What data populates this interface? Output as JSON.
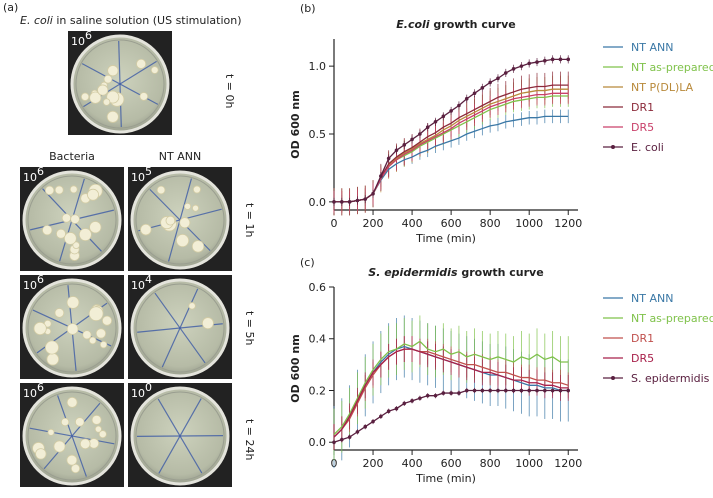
{
  "photos": {
    "panel_label": "(a)",
    "title_italic": "E. coli",
    "title_rest": " in saline solution (US stimulation)",
    "top_plate": {
      "base": "10",
      "exponent": "6",
      "time": "t = 0h"
    },
    "column_headers": [
      "Bacteria",
      "NT ANN"
    ],
    "rows": [
      {
        "time": "t = 1h",
        "plates": [
          {
            "base": "10",
            "exponent": "6"
          },
          {
            "base": "10",
            "exponent": "5"
          }
        ]
      },
      {
        "time": "t = 5h",
        "plates": [
          {
            "base": "10",
            "exponent": "6"
          },
          {
            "base": "10",
            "exponent": "4"
          }
        ]
      },
      {
        "time": "t = 24h",
        "plates": [
          {
            "base": "10",
            "exponent": "6"
          },
          {
            "base": "10",
            "exponent": "0"
          }
        ]
      }
    ]
  },
  "chart_data": [
    {
      "type": "line",
      "panel_label": "(b)",
      "title_italic": "E.coli",
      "title_rest": " growth curve",
      "x_label": "Time (min)",
      "y_label": "OD 600 nm",
      "xlim": [
        0,
        1250
      ],
      "xticks": [
        0,
        200,
        400,
        600,
        800,
        1000,
        1200
      ],
      "ylim": [
        -0.06,
        1.2
      ],
      "yticks": [
        {
          "value": 0,
          "label": "0.0"
        },
        {
          "value": 0.5,
          "label": "0.5"
        },
        {
          "value": 1,
          "label": "1.0"
        }
      ],
      "x": [
        0,
        40,
        80,
        120,
        160,
        200,
        240,
        280,
        320,
        360,
        400,
        440,
        480,
        520,
        560,
        600,
        640,
        680,
        720,
        760,
        800,
        840,
        880,
        920,
        960,
        1000,
        1040,
        1080,
        1120,
        1160,
        1200
      ],
      "series": [
        {
          "name": "NT ANN",
          "color": "#3b78a6",
          "error": 0.05,
          "values": [
            0,
            0,
            0,
            0.01,
            0.02,
            0.06,
            0.16,
            0.24,
            0.28,
            0.31,
            0.33,
            0.36,
            0.38,
            0.41,
            0.43,
            0.45,
            0.47,
            0.5,
            0.52,
            0.54,
            0.56,
            0.57,
            0.59,
            0.6,
            0.61,
            0.62,
            0.62,
            0.63,
            0.63,
            0.63,
            0.63
          ]
        },
        {
          "name": "NT as-prepared",
          "color": "#7fc24a",
          "error": 0.08,
          "values": [
            0,
            0,
            0,
            0.01,
            0.02,
            0.06,
            0.17,
            0.26,
            0.31,
            0.34,
            0.37,
            0.41,
            0.44,
            0.47,
            0.5,
            0.53,
            0.56,
            0.59,
            0.62,
            0.65,
            0.68,
            0.7,
            0.72,
            0.74,
            0.75,
            0.76,
            0.77,
            0.77,
            0.78,
            0.78,
            0.78
          ]
        },
        {
          "name": "NT P(DL)LA",
          "color": "#b8893a",
          "error": 0.1,
          "values": [
            0,
            0,
            0,
            0.01,
            0.02,
            0.06,
            0.17,
            0.27,
            0.32,
            0.36,
            0.39,
            0.43,
            0.46,
            0.49,
            0.53,
            0.56,
            0.6,
            0.63,
            0.66,
            0.69,
            0.72,
            0.74,
            0.76,
            0.78,
            0.8,
            0.81,
            0.82,
            0.82,
            0.83,
            0.83,
            0.83
          ]
        },
        {
          "name": "DR1",
          "color": "#8b2a3a",
          "error": 0.1,
          "values": [
            0,
            0,
            0,
            0.01,
            0.02,
            0.06,
            0.18,
            0.28,
            0.33,
            0.37,
            0.4,
            0.44,
            0.48,
            0.51,
            0.55,
            0.58,
            0.62,
            0.65,
            0.68,
            0.71,
            0.74,
            0.77,
            0.79,
            0.81,
            0.83,
            0.84,
            0.85,
            0.85,
            0.86,
            0.86,
            0.86
          ]
        },
        {
          "name": "DR5",
          "color": "#c9406a",
          "error": 0.08,
          "values": [
            0,
            0,
            0,
            0.01,
            0.02,
            0.06,
            0.17,
            0.26,
            0.31,
            0.35,
            0.38,
            0.42,
            0.45,
            0.48,
            0.51,
            0.54,
            0.58,
            0.61,
            0.64,
            0.67,
            0.7,
            0.72,
            0.74,
            0.76,
            0.77,
            0.78,
            0.79,
            0.79,
            0.8,
            0.8,
            0.8
          ]
        },
        {
          "name": "E. coli",
          "color": "#5a2040",
          "error": 0.03,
          "markers": true,
          "values": [
            0,
            0,
            0,
            0.01,
            0.02,
            0.06,
            0.19,
            0.32,
            0.38,
            0.42,
            0.46,
            0.5,
            0.55,
            0.59,
            0.63,
            0.67,
            0.71,
            0.76,
            0.8,
            0.84,
            0.88,
            0.91,
            0.95,
            0.98,
            1,
            1.02,
            1.03,
            1.04,
            1.05,
            1.05,
            1.05
          ]
        }
      ]
    },
    {
      "type": "line",
      "panel_label": "(c)",
      "title_italic": "S. epidermidis",
      "title_rest": " growth curve",
      "x_label": "Time (min)",
      "y_label": "OD 600 nm",
      "xlim": [
        0,
        1250
      ],
      "xticks": [
        0,
        200,
        400,
        600,
        800,
        1000,
        1200
      ],
      "ylim": [
        -0.03,
        0.6
      ],
      "yticks": [
        {
          "value": 0,
          "label": "0.0"
        },
        {
          "value": 0.2,
          "label": "0.2"
        },
        {
          "value": 0.4,
          "label": "0.4"
        },
        {
          "value": 0.6,
          "label": "0.6"
        }
      ],
      "x": [
        0,
        40,
        80,
        120,
        160,
        200,
        240,
        280,
        320,
        360,
        400,
        440,
        480,
        520,
        560,
        600,
        640,
        680,
        720,
        760,
        800,
        840,
        880,
        920,
        960,
        1000,
        1040,
        1080,
        1120,
        1160,
        1200
      ],
      "series": [
        {
          "name": "NT ANN",
          "color": "#3b78a6",
          "error": 0.12,
          "values": [
            0.02,
            0.05,
            0.1,
            0.16,
            0.22,
            0.27,
            0.31,
            0.34,
            0.36,
            0.37,
            0.36,
            0.35,
            0.34,
            0.33,
            0.32,
            0.31,
            0.3,
            0.29,
            0.28,
            0.27,
            0.26,
            0.26,
            0.25,
            0.24,
            0.23,
            0.22,
            0.22,
            0.21,
            0.21,
            0.2,
            0.2
          ]
        },
        {
          "name": "NT as-prepared",
          "color": "#7fc24a",
          "error": 0.1,
          "values": [
            0.03,
            0.06,
            0.11,
            0.17,
            0.23,
            0.28,
            0.32,
            0.35,
            0.36,
            0.38,
            0.37,
            0.39,
            0.36,
            0.35,
            0.36,
            0.34,
            0.35,
            0.33,
            0.34,
            0.33,
            0.32,
            0.33,
            0.32,
            0.31,
            0.33,
            0.32,
            0.34,
            0.32,
            0.33,
            0.31,
            0.31
          ]
        },
        {
          "name": "DR1",
          "color": "#c0504d",
          "error": 0.05,
          "values": [
            0.02,
            0.05,
            0.09,
            0.15,
            0.21,
            0.26,
            0.3,
            0.33,
            0.35,
            0.36,
            0.36,
            0.35,
            0.35,
            0.34,
            0.33,
            0.32,
            0.31,
            0.3,
            0.3,
            0.29,
            0.28,
            0.27,
            0.27,
            0.26,
            0.25,
            0.25,
            0.24,
            0.24,
            0.23,
            0.23,
            0.22
          ]
        },
        {
          "name": "DR5",
          "color": "#a8204a",
          "error": 0.05,
          "values": [
            0.02,
            0.05,
            0.1,
            0.16,
            0.22,
            0.27,
            0.3,
            0.33,
            0.35,
            0.36,
            0.36,
            0.35,
            0.34,
            0.33,
            0.32,
            0.31,
            0.3,
            0.29,
            0.28,
            0.27,
            0.27,
            0.26,
            0.25,
            0.24,
            0.24,
            0.23,
            0.23,
            0.22,
            0.22,
            0.21,
            0.21
          ]
        },
        {
          "name": "S. epidermidis",
          "color": "#5a2040",
          "error": 0.01,
          "markers": true,
          "values": [
            0,
            0.01,
            0.02,
            0.04,
            0.06,
            0.08,
            0.1,
            0.12,
            0.13,
            0.15,
            0.16,
            0.17,
            0.18,
            0.18,
            0.19,
            0.19,
            0.19,
            0.2,
            0.2,
            0.2,
            0.2,
            0.2,
            0.2,
            0.2,
            0.2,
            0.2,
            0.2,
            0.2,
            0.2,
            0.2,
            0.2
          ]
        }
      ]
    }
  ]
}
